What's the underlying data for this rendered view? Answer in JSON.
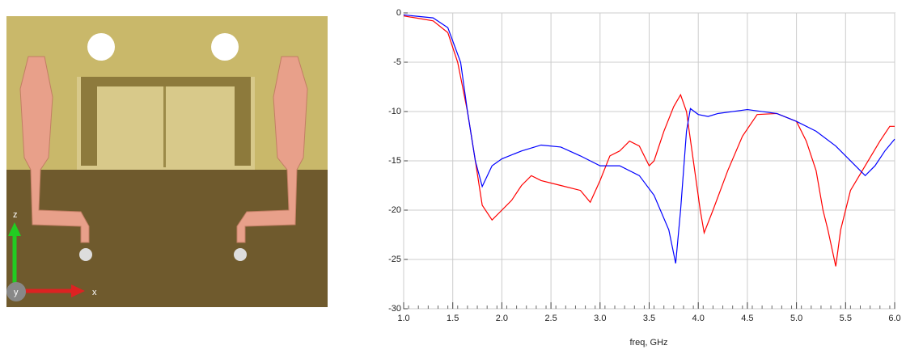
{
  "photo": {
    "axis_labels": [
      "z",
      "x",
      "y"
    ]
  },
  "chart_data": {
    "type": "line",
    "xlabel": "freq, GHz",
    "xlim": [
      1,
      6
    ],
    "xticks": [
      {
        "value": 1,
        "label": "1.0"
      },
      1.5,
      {
        "value": 2,
        "label": "2.0"
      },
      2.5,
      {
        "value": 3,
        "label": "3.0"
      },
      3.5,
      {
        "value": 4,
        "label": "4.0"
      },
      4.5,
      {
        "value": 5,
        "label": "5.0"
      },
      5.5,
      {
        "value": 6,
        "label": "6.0"
      }
    ],
    "ylim": [
      -30,
      0
    ],
    "yticks": [
      -30,
      -25,
      -20,
      -15,
      -10,
      -5,
      0
    ],
    "grid": true,
    "series": [
      {
        "color": "#ff0000",
        "x": [
          1.0,
          1.3,
          1.45,
          1.55,
          1.65,
          1.73,
          1.8,
          1.9,
          2.0,
          2.1,
          2.2,
          2.3,
          2.4,
          2.6,
          2.8,
          2.9,
          3.0,
          3.1,
          3.2,
          3.3,
          3.4,
          3.5,
          3.55,
          3.65,
          3.75,
          3.82,
          3.88,
          3.95,
          4.02,
          4.06,
          4.15,
          4.3,
          4.45,
          4.6,
          4.8,
          5.0,
          5.1,
          5.2,
          5.27,
          5.32,
          5.4,
          5.45,
          5.55,
          5.7,
          5.85,
          5.95,
          6.0
        ],
        "values": [
          -0.3,
          -0.8,
          -2,
          -5,
          -10,
          -15,
          -19.5,
          -21,
          -20,
          -19,
          -17.5,
          -16.5,
          -17,
          -17.5,
          -18,
          -19.2,
          -17,
          -14.5,
          -14,
          -13,
          -13.5,
          -15.5,
          -15,
          -12,
          -9.5,
          -8.3,
          -10,
          -15,
          -20,
          -22.3,
          -20,
          -16,
          -12.5,
          -10.3,
          -10.2,
          -11,
          -13,
          -16,
          -20,
          -22,
          -25.7,
          -22,
          -18,
          -15.5,
          -13,
          -11.5,
          -11.5
        ]
      },
      {
        "color": "#0000ff",
        "x": [
          1.0,
          1.3,
          1.45,
          1.58,
          1.65,
          1.73,
          1.8,
          1.9,
          2.0,
          2.2,
          2.4,
          2.6,
          2.8,
          3.0,
          3.2,
          3.4,
          3.55,
          3.7,
          3.77,
          3.82,
          3.88,
          3.92,
          4.0,
          4.1,
          4.2,
          4.5,
          4.8,
          5.0,
          5.2,
          5.4,
          5.6,
          5.7,
          5.8,
          5.9,
          6.0
        ],
        "values": [
          -0.2,
          -0.5,
          -1.5,
          -5,
          -10,
          -15,
          -17.6,
          -15.5,
          -14.8,
          -14,
          -13.4,
          -13.6,
          -14.5,
          -15.5,
          -15.5,
          -16.5,
          -18.5,
          -22,
          -25.4,
          -20,
          -12,
          -9.7,
          -10.3,
          -10.5,
          -10.2,
          -9.8,
          -10.2,
          -11,
          -12,
          -13.5,
          -15.5,
          -16.5,
          -15.5,
          -14,
          -12.8
        ]
      }
    ]
  }
}
